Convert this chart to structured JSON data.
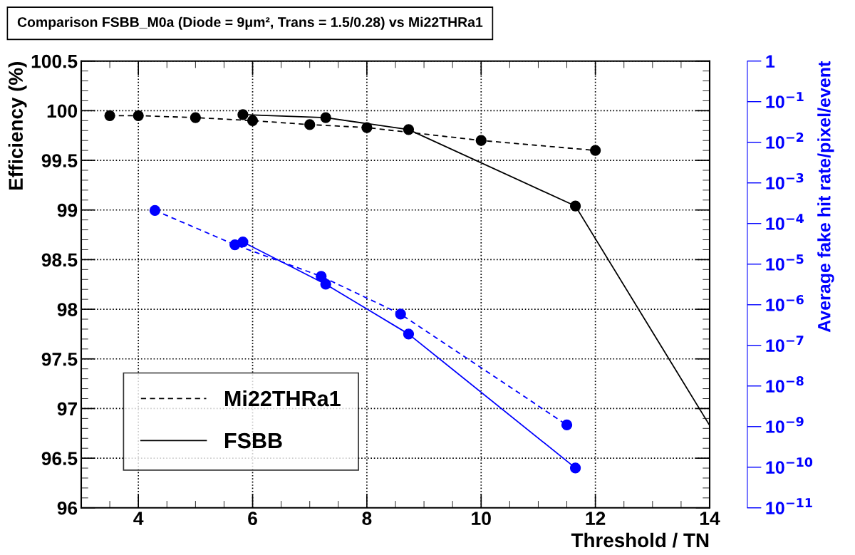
{
  "chart_data": {
    "type": "line",
    "title": "Comparison FSBB_M0a (Diode = 9μm², Trans = 1.5/0.28) vs Mi22THRa1",
    "xlabel": "Threshold / TN",
    "ylabel": "Efficiency (%)",
    "y2label": "Average fake hit rate/pixel/event",
    "xlim": [
      3,
      14
    ],
    "xticks": [
      4,
      6,
      8,
      10,
      12,
      14
    ],
    "ylim": [
      96,
      100.5
    ],
    "yticks": [
      96,
      96.5,
      97,
      97.5,
      98,
      98.5,
      99,
      99.5,
      100,
      100.5
    ],
    "y2lim": [
      1e-11,
      1
    ],
    "log": "y2",
    "y2ticks": [
      {
        "value": 1e-11,
        "label": "10$^{−11}$"
      },
      {
        "value": 1e-10,
        "label": "10$^{−10}$"
      },
      {
        "value": 1e-09,
        "label": "10$^{−9}$"
      },
      {
        "value": 1e-08,
        "label": "10$^{−8}$"
      },
      {
        "value": 1e-07,
        "label": "10$^{−7}$"
      },
      {
        "value": 1e-06,
        "label": "10$^{−6}$"
      },
      {
        "value": 1e-05,
        "label": "10$^{−5}$"
      },
      {
        "value": 0.0001,
        "label": "10$^{−4}$"
      },
      {
        "value": 0.001,
        "label": "10$^{−3}$"
      },
      {
        "value": 0.01,
        "label": "10$^{−2}$"
      },
      {
        "value": 0.1,
        "label": "10$^{−1}$"
      },
      1
    ],
    "grid": true,
    "legend": "bottom left",
    "marker": "circle",
    "series": [
      {
        "name": "Mi22THRa1",
        "color": "#000000",
        "line_style": "dashed",
        "x": [
          3.5,
          4,
          5,
          6,
          7,
          8,
          10,
          12
        ],
        "values": [
          99.95,
          99.95,
          99.93,
          99.9,
          99.86,
          99.83,
          99.7,
          99.6
        ]
      },
      {
        "name": "FSBB",
        "color": "#000000",
        "line_style": "solid",
        "x": [
          5.83,
          7.28,
          8.73,
          11.65
        ],
        "values": [
          99.96,
          99.93,
          99.81,
          99.04
        ]
      },
      {
        "color": "#000000",
        "line_style": "solid",
        "marker": "none",
        "x": [
          11.65,
          14
        ],
        "values": [
          99.04,
          96.83
        ]
      },
      {
        "color": "#0000ff",
        "line_style": "dashed",
        "axis": "y2",
        "x": [
          4.29,
          5.69,
          7.2,
          8.59,
          11.5
        ],
        "values": [
          0.00021,
          3e-05,
          5e-06,
          5.9e-07,
          1.1e-09
        ]
      },
      {
        "color": "#0000ff",
        "line_style": "solid",
        "axis": "y2",
        "x": [
          5.83,
          7.28,
          8.73,
          11.65
        ],
        "values": [
          3.5e-05,
          3.2e-06,
          1.9e-07,
          9.6e-11
        ]
      }
    ]
  }
}
